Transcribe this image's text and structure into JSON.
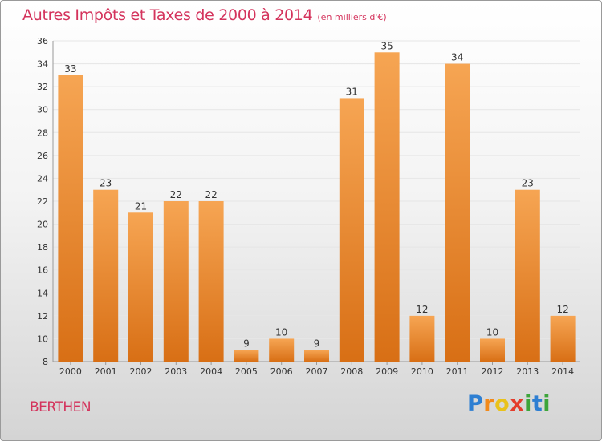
{
  "chart_data": {
    "type": "bar",
    "title": "Autres Impôts et Taxes de 2000 à 2014",
    "subtitle": "(en milliers d'€)",
    "categories": [
      "2000",
      "2001",
      "2002",
      "2003",
      "2004",
      "2005",
      "2006",
      "2007",
      "2008",
      "2009",
      "2010",
      "2011",
      "2012",
      "2013",
      "2014"
    ],
    "values": [
      33,
      23,
      21,
      22,
      22,
      9,
      10,
      9,
      31,
      35,
      12,
      34,
      10,
      23,
      12
    ],
    "ylim": [
      8,
      36
    ],
    "yticks": [
      8,
      10,
      12,
      14,
      16,
      18,
      20,
      22,
      24,
      26,
      28,
      30,
      32,
      34,
      36
    ],
    "grid": true,
    "bar_color_top": "#f6a553",
    "bar_color_bottom": "#d86f15",
    "title_color": "#d4335c"
  },
  "footer": {
    "commune": "BERTHEN",
    "logo": {
      "letters": [
        "P",
        "r",
        "o",
        "x",
        "i",
        "t",
        "i"
      ],
      "colors": [
        "#2e7fd2",
        "#f28a1b",
        "#e9c21a",
        "#e43c2b",
        "#3da53a",
        "#2e7fd2",
        "#3da53a"
      ]
    }
  }
}
